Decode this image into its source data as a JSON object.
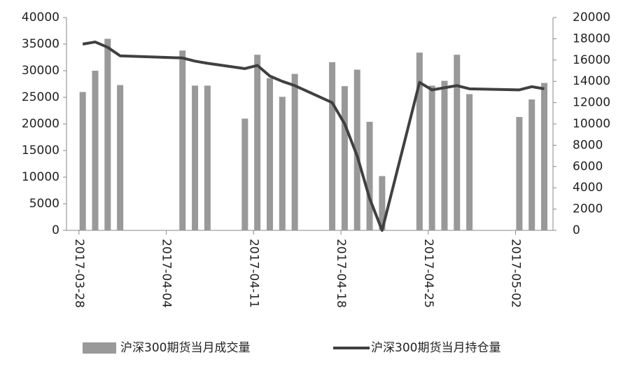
{
  "chart_data": {
    "type": "bar-line",
    "x": [
      "2017-03-28",
      "2017-03-29",
      "2017-03-30",
      "2017-03-31",
      "2017-04-05",
      "2017-04-06",
      "2017-04-07",
      "2017-04-10",
      "2017-04-11",
      "2017-04-12",
      "2017-04-13",
      "2017-04-14",
      "2017-04-17",
      "2017-04-18",
      "2017-04-19",
      "2017-04-20",
      "2017-04-21",
      "2017-04-24",
      "2017-04-25",
      "2017-04-26",
      "2017-04-27",
      "2017-04-28",
      "2017-05-02",
      "2017-05-03",
      "2017-05-04"
    ],
    "xlim": [
      "2017-03-27",
      "2017-05-05"
    ],
    "xticks": [
      "2017-03-28",
      "2017-04-04",
      "2017-04-11",
      "2017-04-18",
      "2017-04-25",
      "2017-05-02"
    ],
    "series": [
      {
        "name": "沪深300期货当月成交量",
        "color": "#999999",
        "type": "bar",
        "values": [
          26000,
          30000,
          36000,
          27300,
          33800,
          27200,
          27200,
          21000,
          33000,
          28600,
          25100,
          29400,
          31600,
          27100,
          30200,
          20400,
          10200,
          33400,
          27200,
          28100,
          33000,
          25600,
          21300,
          24600,
          27700
        ]
      },
      {
        "name": "沪深300期货当月持仓量",
        "color": "#404040",
        "type": "line",
        "axis": "y2",
        "values": [
          17500,
          17700,
          17200,
          16400,
          16200,
          15900,
          15700,
          15200,
          15500,
          14500,
          14000,
          13600,
          12000,
          10000,
          7000,
          3000,
          0,
          13900,
          13200,
          13400,
          13600,
          13300,
          13200,
          13500,
          13300
        ]
      }
    ],
    "ylim": [
      0,
      40000
    ],
    "yticks": [
      0,
      5000,
      10000,
      15000,
      20000,
      25000,
      30000,
      35000,
      40000
    ],
    "y2lim": [
      0,
      20000
    ],
    "y2ticks": [
      0,
      2000,
      4000,
      6000,
      8000,
      10000,
      12000,
      14000,
      16000,
      18000,
      20000
    ],
    "grid": false,
    "legend": "bottom"
  }
}
